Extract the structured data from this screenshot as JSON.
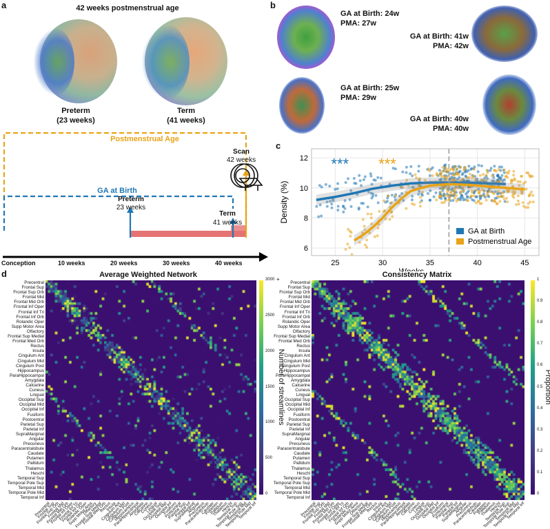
{
  "panel_letters": {
    "a": "a",
    "b": "b",
    "c": "c",
    "d": "d"
  },
  "panel_a": {
    "title": "42 weeks postmenstrual age",
    "preterm": {
      "name": "Preterm",
      "age": "(23 weeks)"
    },
    "term": {
      "name": "Term",
      "age": "(41 weeks)"
    },
    "pma_label": "Postmenstrual Age",
    "ga_label": "GA at Birth",
    "scan": {
      "label": "Scan",
      "weeks": "42 weeks"
    },
    "preterm_marker": {
      "label": "Preterm",
      "weeks": "23 weeks"
    },
    "term_marker": {
      "label": "Term",
      "weeks": "41 weeks"
    },
    "axis_labels": [
      "Conception",
      "10 weeks",
      "20 weeks",
      "30 weeks",
      "40 weeks"
    ],
    "colors": {
      "pma": "#E8A317",
      "ga": "#1F77B4",
      "bar": "#E57373"
    }
  },
  "panel_b": {
    "items": [
      {
        "ga": "GA at Birth: 24w",
        "pma": "PMA: 27w"
      },
      {
        "ga": "GA at Birth: 41w",
        "pma": "PMA: 42w"
      },
      {
        "ga": "GA at Birth: 25w",
        "pma": "PMA: 29w"
      },
      {
        "ga": "GA at Birth: 40w",
        "pma": "PMA: 40w"
      }
    ]
  },
  "chart_data": {
    "type": "scatter",
    "xlabel": "Weeks",
    "ylabel": "Density (%)",
    "xlim": [
      22.5,
      46.5
    ],
    "ylim": [
      5.5,
      12.6
    ],
    "xticks": [
      25,
      30,
      35,
      40,
      45
    ],
    "yticks": [
      6,
      8,
      10,
      12
    ],
    "vline_x": 37,
    "annotations": [
      {
        "text": "***",
        "x": 25.5,
        "y": 11.7,
        "series": "GA at Birth"
      },
      {
        "text": "***",
        "x": 30.5,
        "y": 11.7,
        "series": "Postmenstrual Age"
      }
    ],
    "legend": {
      "position": "bottom-right"
    },
    "series": [
      {
        "name": "GA at Birth",
        "color": "#1F77B4",
        "fit_x": [
          23,
          25,
          27,
          29,
          31,
          33,
          35,
          37,
          39,
          41,
          43
        ],
        "fit_y": [
          9.2,
          9.4,
          9.65,
          9.95,
          10.15,
          10.3,
          10.35,
          10.35,
          10.35,
          10.3,
          10.25
        ],
        "points_range_x": [
          23,
          43
        ]
      },
      {
        "name": "Postmenstrual Age",
        "color": "#E8A317",
        "fit_x": [
          27,
          28,
          29,
          30,
          31,
          32,
          33,
          35,
          37,
          39,
          41,
          43,
          45
        ],
        "fit_y": [
          6.5,
          6.9,
          7.4,
          8.0,
          8.7,
          9.3,
          9.8,
          10.15,
          10.25,
          10.2,
          10.1,
          10.0,
          9.9
        ],
        "points_range_x": [
          26,
          46
        ]
      }
    ]
  },
  "panel_d": {
    "matrix1": {
      "title": "Average Weighted Network",
      "colorbar_label": "Number of streamlines",
      "colorbar_ticks": [
        "3000",
        "2500",
        "2000",
        "1500",
        "1000",
        "500",
        "0"
      ],
      "colorbar_top_note": "+"
    },
    "matrix2": {
      "title": "Consistency Matrix",
      "colorbar_label": "Proportion",
      "colorbar_ticks": [
        "1",
        "0.9",
        "0.8",
        "0.7",
        "0.6",
        "0.5",
        "0.4",
        "0.3",
        "0.2",
        "0.1",
        "0"
      ]
    },
    "regions": [
      "Precentral",
      "Frontal Sup",
      "Frontal Sup Orb",
      "Frontal Mid",
      "Frontal Mid Orb",
      "Frontal Inf Oper",
      "Frontal Inf Tri",
      "Frontal Inf Orb",
      "Rolandic Oper",
      "Supp Motor Area",
      "Olfactory",
      "Frontal Sup Medial",
      "Frontal Med Orb",
      "Rectus",
      "Insula",
      "Cingulum Ant",
      "Cingulum Mid",
      "Cingulum Post",
      "Hippocampus",
      "ParaHippocampal",
      "Amygdala",
      "Calcarine",
      "Cuneus",
      "Lingual",
      "Occipital Sup",
      "Occipital Mid",
      "Occipital Inf",
      "Fusiform",
      "Postcentral",
      "Parietal Sup",
      "Parietal Inf",
      "SupraMarginal",
      "Angular",
      "Precuneus",
      "Paracentralobule",
      "Caudate",
      "Putamen",
      "Pallidum",
      "Thalamus",
      "Heschl",
      "Temporal Sup",
      "Temporal Pole Sup",
      "Temporal Mid",
      "Temporal Pole Mid",
      "Temporal Inf"
    ]
  }
}
